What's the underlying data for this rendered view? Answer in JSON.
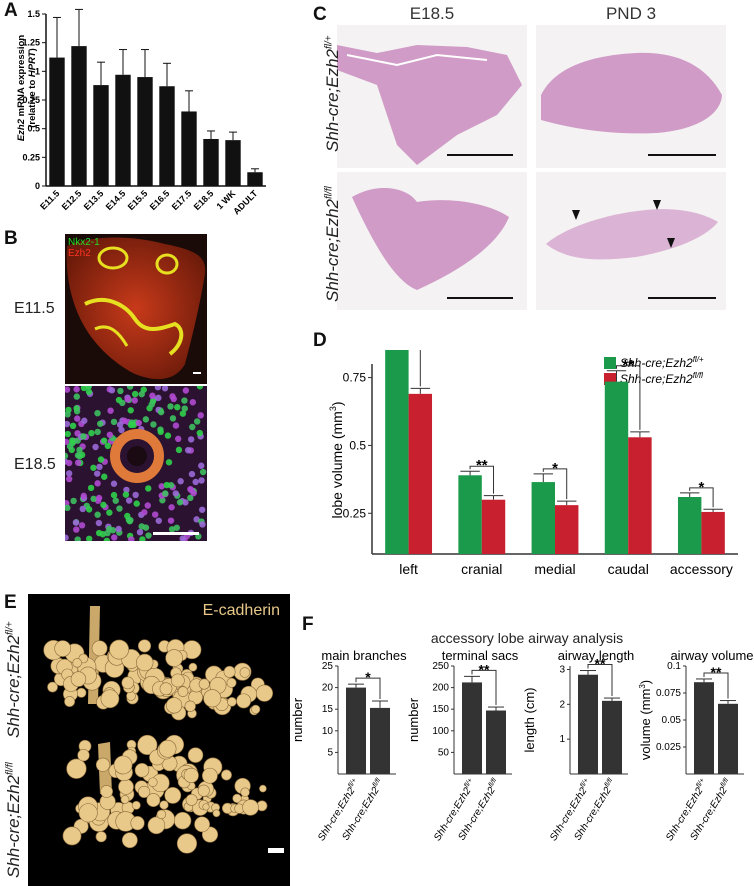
{
  "panels": {
    "a": "A",
    "b": "B",
    "c": "C",
    "d": "D",
    "e": "E",
    "f": "F"
  },
  "panelA": {
    "ylabel_italic": "Ezh2",
    "ylabel_rest": " mRNA expression",
    "ylabel_line2_pre": "(relative to ",
    "ylabel_line2_italic": "HPRT",
    "ylabel_line2_post": ")",
    "chart_data": {
      "type": "bar",
      "categories": [
        "E11.5",
        "E12.5",
        "E13.5",
        "E14.5",
        "E15.5",
        "E16.5",
        "E17.5",
        "E18.5",
        "1 WK",
        "ADULT"
      ],
      "values": [
        1.12,
        1.22,
        0.88,
        0.97,
        0.95,
        0.87,
        0.65,
        0.41,
        0.4,
        0.12
      ],
      "errors": [
        0.35,
        0.32,
        0.2,
        0.22,
        0.24,
        0.2,
        0.18,
        0.07,
        0.07,
        0.03
      ],
      "ylim": [
        0,
        1.5
      ],
      "yticks": [
        "0",
        "0.25",
        "0.5",
        "0.75",
        "1",
        "1.25",
        "1.5"
      ]
    }
  },
  "panelB": {
    "legend_green": "Nkx2-1",
    "legend_red": "Ezh2",
    "row1": "E11.5",
    "row2": "E18.5"
  },
  "panelC": {
    "col1": "E18.5",
    "col2": "PND 3",
    "row1_pre": "Shh-cre;Ezh2",
    "row1_sup": "fl/+",
    "row2_pre": "Shh-cre;Ezh2",
    "row2_sup": "fl/fl"
  },
  "panelD": {
    "ylabel_pre": "lobe volume (mm",
    "ylabel_sup": "3",
    "ylabel_post": ")",
    "legend": [
      {
        "pre": "Shh-cre;Ezh2",
        "sup": "fl/+",
        "color": "#1a9a4a"
      },
      {
        "pre": "Shh-cre;Ezh2",
        "sup": "fl/fl",
        "color": "#c8202f"
      }
    ],
    "chart_data": {
      "type": "bar",
      "categories": [
        "left",
        "cranial",
        "medial",
        "caudal",
        "accessory"
      ],
      "ylim": [
        0.1,
        0.8
      ],
      "yticks": [
        "0.25",
        "0.5",
        "0.75"
      ],
      "series": [
        {
          "name": "Shh-cre;Ezh2fl/+",
          "values": [
            0.88,
            0.39,
            0.365,
            0.735,
            0.31
          ],
          "errors": [
            0.03,
            0.015,
            0.03,
            0.04,
            0.015
          ]
        },
        {
          "name": "Shh-cre;Ezh2fl/fl",
          "values": [
            0.69,
            0.3,
            0.28,
            0.53,
            0.255
          ],
          "errors": [
            0.02,
            0.015,
            0.015,
            0.02,
            0.01
          ]
        }
      ],
      "significance": [
        "**",
        "**",
        "*",
        "**",
        "*"
      ]
    }
  },
  "panelE": {
    "stain": "E-cadherin",
    "row1_pre": "Shh-cre;Ezh2",
    "row1_sup": "fl/+",
    "row2_pre": "Shh-cre;Ezh2",
    "row2_sup": "fl/fl"
  },
  "panelF": {
    "title": "accessory lobe airway analysis",
    "xcat_pre": "Shh-cre;Ezh2",
    "xcat_sup1": "fl/+",
    "xcat_sup2": "fl/fl",
    "chart_data": [
      {
        "type": "bar",
        "title": "main branches",
        "ylabel": "number",
        "categories": [
          "Shh-cre;Ezh2fl/+",
          "Shh-cre;Ezh2fl/fl"
        ],
        "values": [
          20,
          15.3
        ],
        "errors": [
          0.8,
          1.6
        ],
        "ylim": [
          0,
          25
        ],
        "yticks": [
          "5",
          "10",
          "15",
          "20",
          "25"
        ],
        "significance": "*"
      },
      {
        "type": "bar",
        "title": "terminal sacs",
        "ylabel": "number",
        "categories": [
          "Shh-cre;Ezh2fl/+",
          "Shh-cre;Ezh2fl/fl"
        ],
        "values": [
          212,
          147
        ],
        "errors": [
          14,
          8
        ],
        "ylim": [
          0,
          250
        ],
        "yticks": [
          "50",
          "100",
          "150",
          "200",
          "250"
        ],
        "significance": "**"
      },
      {
        "type": "bar",
        "title": "airway length",
        "ylabel": "length (cm)",
        "categories": [
          "Shh-cre;Ezh2fl/+",
          "Shh-cre;Ezh2fl/fl"
        ],
        "values": [
          2.85,
          2.1
        ],
        "errors": [
          0.12,
          0.08
        ],
        "ylim": [
          0,
          3.1
        ],
        "yticks": [
          "1",
          "2",
          "3"
        ],
        "significance": "**"
      },
      {
        "type": "bar",
        "title": "airway volume",
        "ylabel_pre": "volume (mm",
        "ylabel_sup": "3",
        "ylabel_post": ")",
        "categories": [
          "Shh-cre;Ezh2fl/+",
          "Shh-cre;Ezh2fl/fl"
        ],
        "values": [
          0.085,
          0.065
        ],
        "errors": [
          0.003,
          0.003
        ],
        "ylim": [
          0,
          0.1
        ],
        "yticks": [
          "0.025",
          "0.05",
          "0.075",
          "0.1"
        ],
        "significance": "**"
      }
    ]
  },
  "colors": {
    "black_bar": "#111111",
    "dark_bar": "#333333",
    "green": "#1a9a4a",
    "red": "#c8202f",
    "nkx_green": "#22dd22",
    "ezh_red": "#ff3322",
    "ecad": "#e8c98a"
  }
}
